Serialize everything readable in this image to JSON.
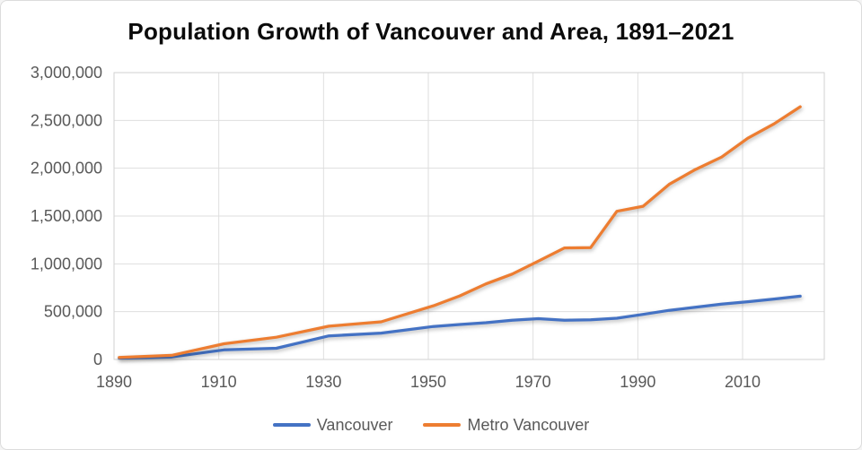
{
  "page": {
    "background": "#ffffff",
    "border_color": "#dcdcdc"
  },
  "chart_data": {
    "type": "line",
    "title": "Population Growth of Vancouver and Area, 1891–2021",
    "xlabel": "",
    "ylabel": "",
    "grid": true,
    "legend_position": "bottom",
    "xlim": [
      1890,
      2025.6
    ],
    "ylim": [
      0,
      3000000
    ],
    "x_ticks": {
      "values": [
        1890,
        1910,
        1930,
        1950,
        1970,
        1990,
        2010
      ],
      "labels": [
        "1890",
        "1910",
        "1930",
        "1950",
        "1970",
        "1990",
        "2010"
      ]
    },
    "y_ticks": {
      "values": [
        0,
        500000,
        1000000,
        1500000,
        2000000,
        2500000,
        3000000
      ],
      "labels": [
        "0",
        "500,000",
        "1,000,000",
        "1,500,000",
        "2,000,000",
        "2,500,000",
        "3,000,000"
      ]
    },
    "x": [
      1891,
      1901,
      1911,
      1921,
      1931,
      1941,
      1951,
      1956,
      1961,
      1966,
      1971,
      1976,
      1981,
      1986,
      1991,
      1996,
      2001,
      2006,
      2011,
      2016,
      2021
    ],
    "series": [
      {
        "name": "Vancouver",
        "color": "#4472C4",
        "values": [
          13709,
          26133,
          100401,
          117217,
          246593,
          275353,
          344833,
          365844,
          384522,
          410375,
          426256,
          410188,
          414281,
          431147,
          471844,
          514008,
          545671,
          578041,
          603502,
          631486,
          662248
        ]
      },
      {
        "name": "Metro Vancouver",
        "color": "#ED7D31",
        "values": [
          21887,
          42926,
          164020,
          232597,
          347709,
          393898,
          561960,
          665017,
          790741,
          892653,
          1028334,
          1166348,
          1169831,
          1550000,
          1602502,
          1831665,
          1986965,
          2116581,
          2313328,
          2463431,
          2642825
        ]
      }
    ]
  }
}
